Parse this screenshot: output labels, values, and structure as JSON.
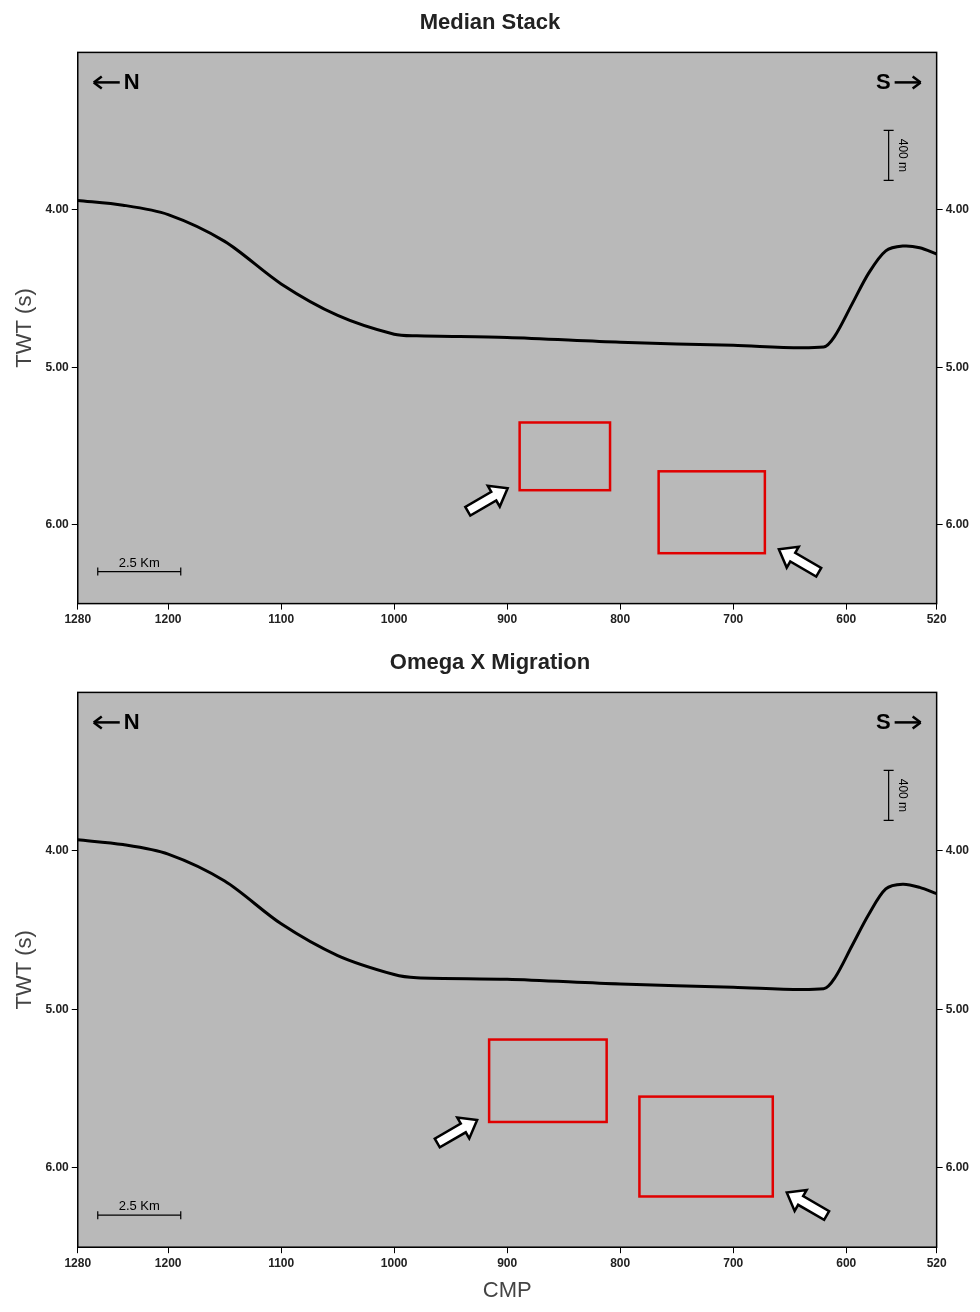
{
  "chart_data": [
    {
      "type": "line",
      "title": "Median Stack",
      "y_label": "TWT (s)",
      "x": [
        1280,
        1240,
        1200,
        1150,
        1100,
        1050,
        1000,
        980,
        900,
        800,
        700,
        620,
        610,
        595,
        580,
        565,
        550,
        535,
        520
      ],
      "series": [
        {
          "color": "#000000",
          "values": [
            3.94,
            3.97,
            4.03,
            4.2,
            4.47,
            4.67,
            4.79,
            4.8,
            4.81,
            4.84,
            4.86,
            4.87,
            4.8,
            4.6,
            4.4,
            4.26,
            4.23,
            4.24,
            4.28
          ]
        }
      ],
      "xlim": [
        1280,
        520
      ],
      "xticks": [
        1280,
        1200,
        1100,
        1000,
        900,
        800,
        700,
        600,
        520
      ],
      "ylim": [
        6.5,
        3.0
      ],
      "yticks": [
        {
          "value": 4,
          "label": "4.00"
        },
        {
          "value": 5,
          "label": "5.00"
        },
        {
          "value": 6,
          "label": "6.00"
        }
      ],
      "grid": false,
      "direction_labels": [
        "N",
        "S"
      ],
      "scale_bars": [
        "400 m",
        "2.5 Km"
      ],
      "boxes": [
        {
          "x": [
            889,
            809
          ],
          "y": [
            5.35,
            5.78
          ],
          "color": "#e00000"
        },
        {
          "x": [
            766,
            672
          ],
          "y": [
            5.66,
            6.18
          ],
          "color": "#e00000"
        }
      ]
    },
    {
      "type": "line",
      "title": "Omega X Migration",
      "y_label": "TWT (s)",
      "x_label": "CMP",
      "x": [
        1280,
        1240,
        1200,
        1150,
        1100,
        1050,
        1000,
        980,
        900,
        800,
        700,
        620,
        610,
        595,
        580,
        565,
        550,
        535,
        520
      ],
      "series": [
        {
          "color": "#000000",
          "values": [
            3.93,
            3.96,
            4.02,
            4.19,
            4.46,
            4.66,
            4.78,
            4.8,
            4.81,
            4.84,
            4.86,
            4.87,
            4.8,
            4.6,
            4.4,
            4.24,
            4.21,
            4.23,
            4.27
          ]
        }
      ],
      "xlim": [
        1280,
        520
      ],
      "xticks": [
        1280,
        1200,
        1100,
        1000,
        900,
        800,
        700,
        600,
        520
      ],
      "ylim": [
        6.5,
        3.0
      ],
      "yticks": [
        {
          "value": 4,
          "label": "4.00"
        },
        {
          "value": 5,
          "label": "5.00"
        },
        {
          "value": 6,
          "label": "6.00"
        }
      ],
      "grid": false,
      "direction_labels": [
        "N",
        "S"
      ],
      "scale_bars": [
        "400 m",
        "2.5 Km"
      ],
      "boxes": [
        {
          "x": [
            916,
            812
          ],
          "y": [
            5.19,
            5.71
          ],
          "color": "#e00000"
        },
        {
          "x": [
            783,
            665
          ],
          "y": [
            5.55,
            6.18
          ],
          "color": "#e00000"
        }
      ]
    }
  ]
}
